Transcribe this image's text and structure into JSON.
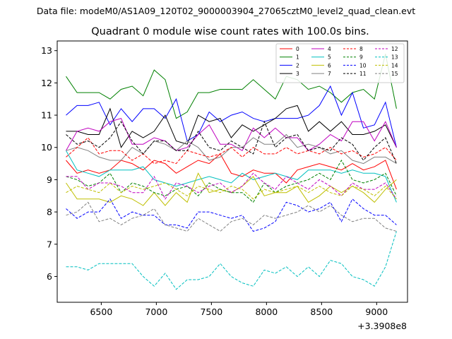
{
  "chart_data": {
    "type": "line",
    "suptitle": "Data file: modeM0/AS1A09_120T02_9000003904_27065cztM0_level2_quad_clean.evt",
    "title": "Quadrant 0 module wise count rates with 100.0s bins.",
    "xlabel": "",
    "ylabel": "",
    "offset_label": "+3.3908e8",
    "xlim": [
      6100,
      9280
    ],
    "ylim": [
      5.2,
      13.3
    ],
    "xticks": [
      6500,
      7000,
      7500,
      8000,
      8500,
      9000
    ],
    "yticks": [
      6,
      7,
      8,
      9,
      10,
      11,
      12,
      13
    ],
    "legend_position": "top-right",
    "x": [
      6180,
      6280,
      6380,
      6480,
      6580,
      6680,
      6780,
      6880,
      6980,
      7080,
      7180,
      7280,
      7380,
      7480,
      7580,
      7680,
      7780,
      7880,
      7980,
      8080,
      8180,
      8280,
      8380,
      8480,
      8580,
      8680,
      8780,
      8880,
      8980,
      9080,
      9180
    ],
    "series": [
      {
        "name": "0",
        "color": "#ff0000",
        "dash": false,
        "values": [
          9.6,
          9.2,
          9.3,
          9.2,
          9.3,
          9.6,
          9.5,
          9.3,
          9.6,
          9.5,
          9.2,
          9.4,
          9.6,
          9.5,
          9.8,
          9.2,
          9.1,
          9.3,
          9.2,
          9.2,
          8.9,
          9.3,
          9.4,
          9.5,
          9.4,
          9.3,
          9.5,
          9.3,
          9.4,
          9.6,
          8.7
        ]
      },
      {
        "name": "1",
        "color": "#008000",
        "dash": false,
        "values": [
          12.2,
          11.7,
          11.7,
          11.7,
          11.5,
          11.8,
          11.9,
          11.6,
          12.4,
          12.1,
          10.9,
          11.1,
          11.7,
          11.7,
          11.8,
          11.8,
          11.8,
          12.1,
          11.8,
          11.5,
          12.2,
          12.1,
          11.8,
          11.9,
          11.7,
          11.4,
          11.7,
          11.8,
          11.5,
          12.9,
          11.2
        ]
      },
      {
        "name": "2",
        "color": "#0000ff",
        "dash": false,
        "values": [
          11.0,
          11.3,
          11.3,
          11.4,
          10.7,
          11.2,
          10.8,
          11.2,
          11.2,
          10.9,
          11.5,
          10.2,
          10.4,
          11.1,
          10.8,
          11.0,
          11.1,
          10.9,
          10.8,
          10.9,
          10.9,
          10.9,
          11.0,
          11.3,
          11.9,
          11.0,
          11.7,
          10.6,
          10.7,
          11.4,
          10.0
        ]
      },
      {
        "name": "3",
        "color": "#000000",
        "dash": false,
        "values": [
          10.5,
          10.5,
          10.4,
          10.4,
          11.2,
          10.0,
          10.5,
          10.3,
          10.5,
          11.0,
          10.2,
          10.1,
          11.0,
          10.8,
          10.9,
          10.3,
          10.7,
          10.5,
          10.7,
          10.9,
          11.2,
          11.3,
          10.5,
          10.8,
          10.5,
          10.8,
          10.4,
          10.4,
          10.5,
          10.7,
          10.0
        ]
      },
      {
        "name": "4",
        "color": "#bf00bf",
        "dash": false,
        "values": [
          9.9,
          10.5,
          10.6,
          10.5,
          10.8,
          10.9,
          10.1,
          10.1,
          10.3,
          10.2,
          9.9,
          10.0,
          10.4,
          10.7,
          10.1,
          10.1,
          9.9,
          10.6,
          10.3,
          10.6,
          10.3,
          10.3,
          9.9,
          10.1,
          10.4,
          10.2,
          10.8,
          10.8,
          10.2,
          10.8,
          10.0
        ]
      },
      {
        "name": "5",
        "color": "#00bfbf",
        "dash": false,
        "values": [
          9.9,
          9.3,
          9.2,
          9.1,
          9.3,
          9.3,
          9.3,
          9.4,
          9.0,
          8.9,
          8.8,
          8.9,
          9.0,
          9.1,
          9.0,
          8.9,
          9.2,
          9.0,
          9.1,
          9.2,
          9.1,
          9.0,
          9.3,
          9.3,
          9.3,
          9.2,
          9.3,
          9.2,
          9.2,
          9.1,
          8.3
        ]
      },
      {
        "name": "6",
        "color": "#bfbf00",
        "dash": false,
        "values": [
          8.9,
          8.4,
          8.4,
          8.4,
          8.3,
          8.5,
          8.4,
          8.2,
          8.6,
          8.2,
          8.6,
          8.3,
          9.2,
          8.6,
          8.7,
          8.6,
          8.8,
          9.1,
          8.5,
          8.6,
          8.6,
          8.8,
          8.3,
          8.5,
          8.8,
          8.6,
          8.8,
          8.6,
          8.3,
          8.7,
          9.0
        ]
      },
      {
        "name": "7",
        "color": "#808080",
        "dash": false,
        "values": [
          9.9,
          10.0,
          9.9,
          9.7,
          9.6,
          9.6,
          10.0,
          9.8,
          10.2,
          10.1,
          9.9,
          10.2,
          10.0,
          9.6,
          9.7,
          10.0,
          10.0,
          10.3,
          10.1,
          10.1,
          10.4,
          10.0,
          10.1,
          10.0,
          9.8,
          9.9,
          9.6,
          9.5,
          9.7,
          9.7,
          9.5
        ]
      },
      {
        "name": "8",
        "color": "#ff0000",
        "dash": true,
        "values": [
          9.7,
          10.0,
          10.3,
          9.8,
          9.9,
          9.9,
          9.6,
          9.8,
          9.5,
          9.6,
          9.5,
          9.9,
          9.8,
          9.7,
          9.8,
          10.0,
          9.7,
          10.0,
          9.8,
          9.8,
          10.0,
          9.8,
          9.9,
          9.8,
          10.0,
          9.8,
          9.9,
          9.7,
          9.8,
          10.0,
          9.6
        ]
      },
      {
        "name": "9",
        "color": "#008000",
        "dash": true,
        "values": [
          9.1,
          9.0,
          8.8,
          8.9,
          9.2,
          8.6,
          8.9,
          8.8,
          8.6,
          8.5,
          8.7,
          8.8,
          8.5,
          8.9,
          8.7,
          8.6,
          8.6,
          8.3,
          8.9,
          8.6,
          8.8,
          8.9,
          9.0,
          9.2,
          9.0,
          9.6,
          9.0,
          8.9,
          9.0,
          9.2,
          8.5
        ]
      },
      {
        "name": "10",
        "color": "#0000ff",
        "dash": true,
        "values": [
          8.1,
          7.8,
          8.0,
          8.0,
          8.4,
          7.8,
          8.0,
          7.9,
          7.9,
          7.6,
          7.6,
          7.5,
          8.0,
          8.0,
          7.9,
          7.8,
          7.9,
          7.4,
          7.5,
          7.7,
          8.3,
          8.2,
          8.0,
          8.1,
          8.3,
          7.7,
          8.4,
          8.1,
          7.9,
          7.9,
          7.6
        ]
      },
      {
        "name": "11",
        "color": "#000000",
        "dash": true,
        "values": [
          10.4,
          10.1,
          10.2,
          10.0,
          10.3,
          10.8,
          10.2,
          9.8,
          10.2,
          10.2,
          9.9,
          9.9,
          10.5,
          10.0,
          9.9,
          10.2,
          10.0,
          9.8,
          10.8,
          10.0,
          10.3,
          10.4,
          9.9,
          10.0,
          9.9,
          10.3,
          10.1,
          9.6,
          10.0,
          10.3,
          9.5
        ]
      },
      {
        "name": "12",
        "color": "#bf00bf",
        "dash": true,
        "values": [
          9.1,
          9.1,
          8.7,
          8.9,
          8.9,
          8.8,
          8.6,
          8.6,
          9.1,
          8.4,
          8.9,
          8.8,
          8.6,
          8.8,
          8.9,
          8.6,
          8.8,
          9.2,
          8.9,
          8.7,
          9.1,
          8.9,
          8.7,
          9.0,
          8.8,
          8.5,
          8.9,
          8.7,
          8.7,
          8.9,
          8.4
        ]
      },
      {
        "name": "13",
        "color": "#00bfbf",
        "dash": true,
        "values": [
          6.3,
          6.3,
          6.2,
          6.4,
          6.4,
          6.4,
          6.4,
          6.0,
          5.7,
          6.1,
          5.6,
          5.9,
          5.9,
          6.0,
          6.4,
          6.0,
          5.8,
          5.7,
          6.2,
          6.1,
          6.3,
          6.0,
          6.3,
          6.0,
          6.5,
          6.4,
          6.0,
          5.9,
          5.7,
          6.3,
          7.4
        ]
      },
      {
        "name": "14",
        "color": "#bfbf00",
        "dash": true,
        "values": [
          8.6,
          8.8,
          8.7,
          8.6,
          8.9,
          8.6,
          8.8,
          8.7,
          8.8,
          8.9,
          8.7,
          8.5,
          8.8,
          8.7,
          8.6,
          8.8,
          8.7,
          8.4,
          8.7,
          8.6,
          8.7,
          8.8,
          8.6,
          8.8,
          8.6,
          8.5,
          8.8,
          8.7,
          8.5,
          8.8,
          8.4
        ]
      },
      {
        "name": "15",
        "color": "#808080",
        "dash": true,
        "values": [
          7.9,
          8.0,
          8.3,
          7.7,
          7.8,
          7.6,
          7.8,
          7.9,
          8.1,
          7.6,
          7.5,
          7.4,
          7.8,
          7.6,
          7.4,
          7.7,
          7.8,
          7.6,
          7.9,
          7.8,
          7.9,
          8.0,
          8.2,
          8.0,
          8.2,
          7.9,
          7.7,
          7.8,
          7.8,
          7.5,
          7.4
        ]
      }
    ]
  }
}
